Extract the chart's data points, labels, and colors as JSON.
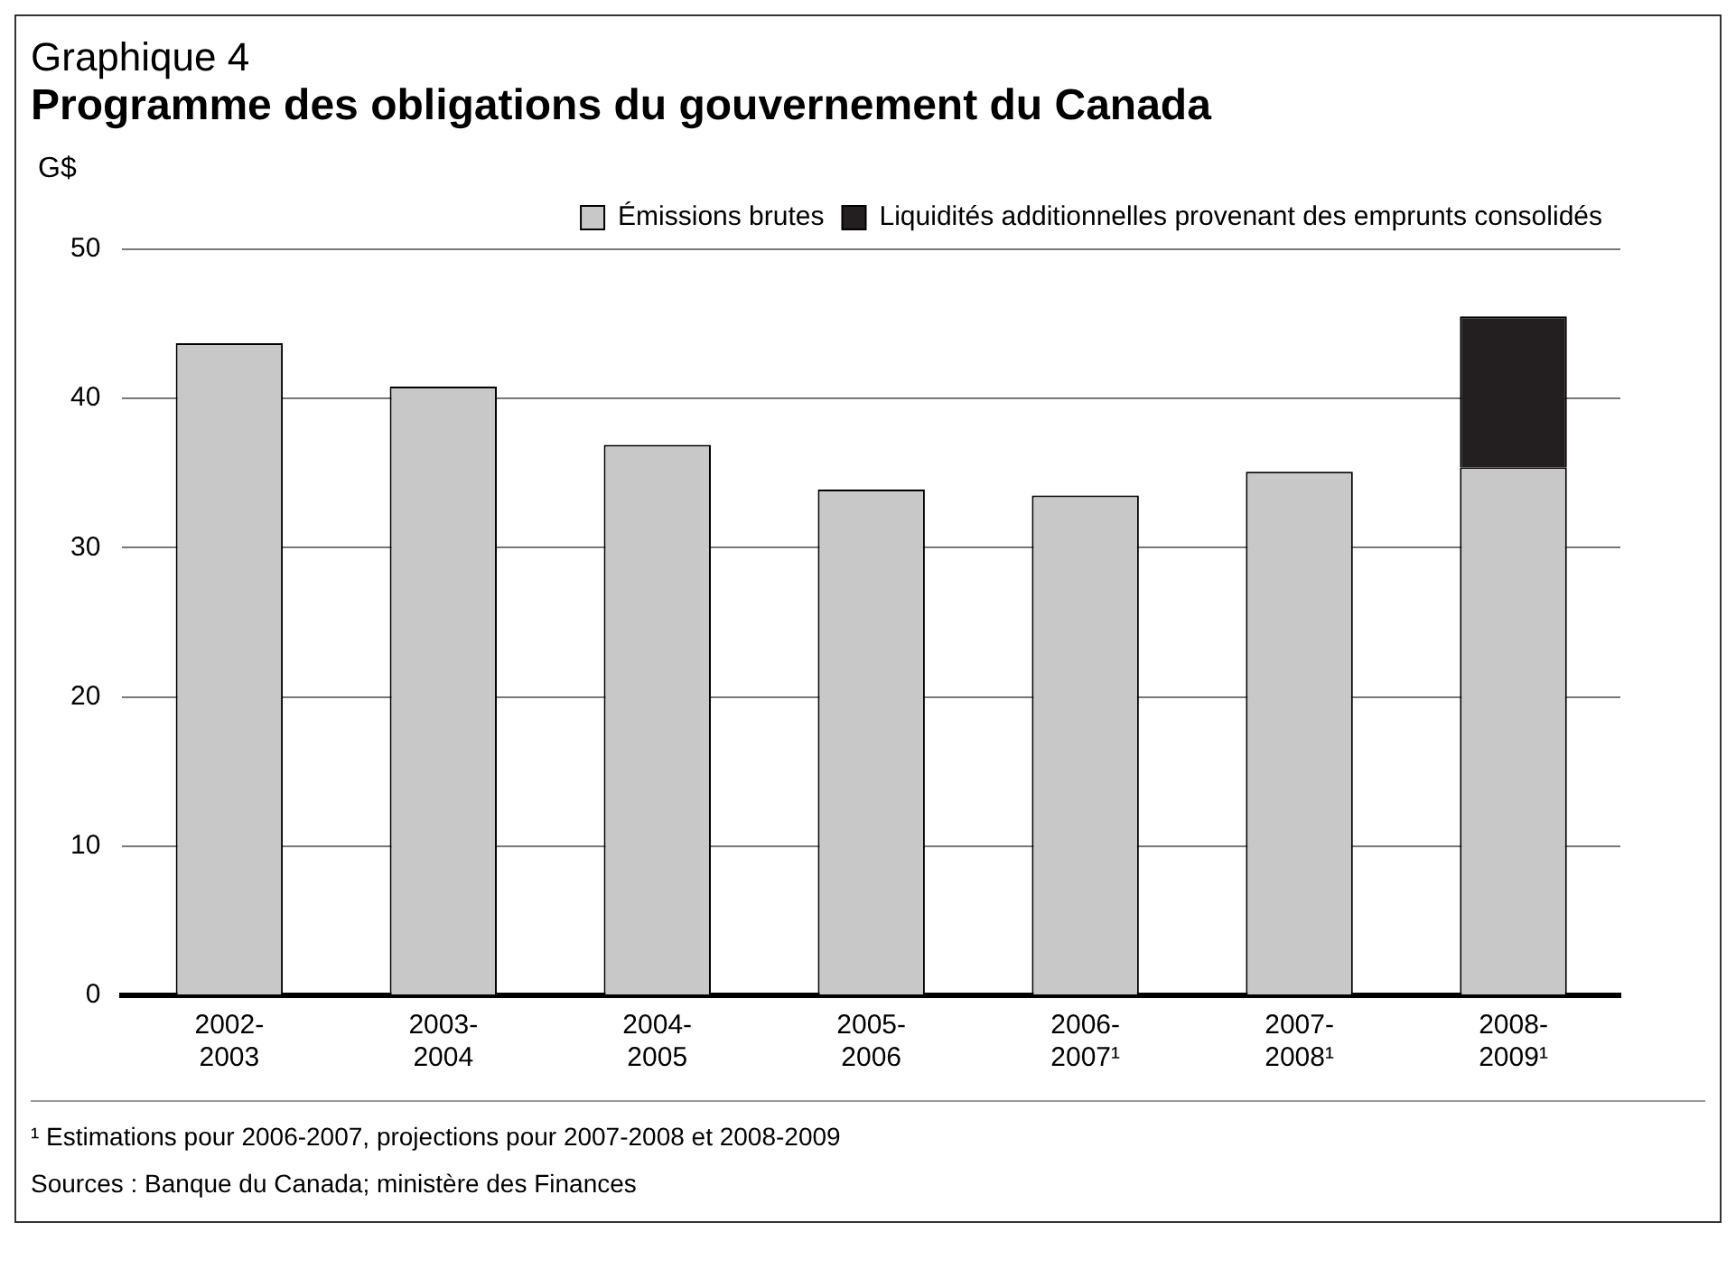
{
  "chart_data": {
    "type": "bar",
    "subtitle": "Graphique 4",
    "title": "Programme des obligations du gouvernement du Canada",
    "ylabel": "G$",
    "categories": [
      "2002-2003",
      "2003-2004",
      "2004-2005",
      "2005-2006",
      "2006-2007¹",
      "2007-2008¹",
      "2008-2009¹"
    ],
    "series": [
      {
        "name": "Émissions brutes",
        "color": "#c8c8c8",
        "values": [
          43.7,
          40.8,
          36.9,
          33.9,
          33.5,
          35.1,
          35.4
        ]
      },
      {
        "name": "Liquidités additionnelles provenant des emprunts consolidés",
        "color": "#231f20",
        "values": [
          null,
          null,
          null,
          null,
          null,
          null,
          10.1
        ]
      }
    ],
    "stacked": true,
    "ylim": [
      0,
      50
    ],
    "yticks": [
      0,
      10,
      20,
      30,
      40,
      50
    ],
    "grid": "y",
    "legend": "top",
    "annotations": [
      "¹ Estimations pour 2006-2007, projections pour 2007-2008 et 2008-2009",
      "Sources : Banque du Canada; ministère des Finances"
    ]
  }
}
